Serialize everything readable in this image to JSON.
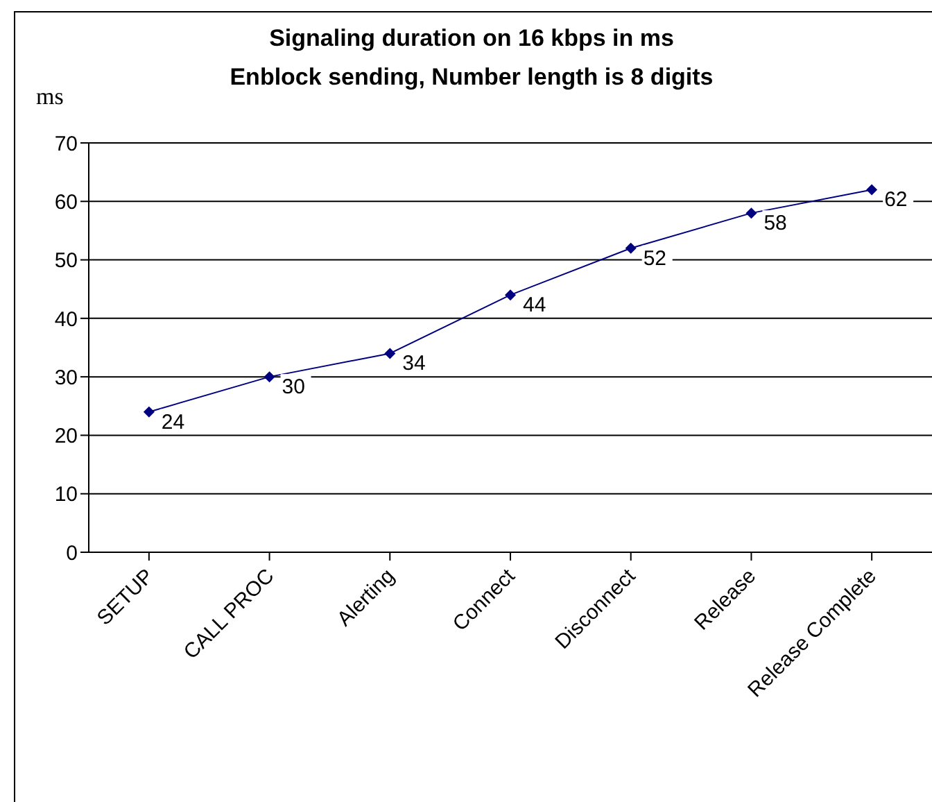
{
  "chart_data": {
    "type": "line",
    "title": "Signaling duration on 16 kbps in ms",
    "subtitle": "Enblock sending, Number length is 8 digits",
    "ylabel": "ms",
    "categories": [
      "SETUP",
      "CALL PROC",
      "Alerting",
      "Connect",
      "Disconnect",
      "Release",
      "Release Complete"
    ],
    "series": [
      {
        "color": "#000080",
        "values": [
          24,
          30,
          34,
          44,
          52,
          58,
          62
        ]
      }
    ],
    "ylim": [
      0,
      70
    ],
    "yticks": [
      0,
      10,
      20,
      30,
      40,
      50,
      60,
      70
    ],
    "grid": "y",
    "marker": "diamond",
    "data_labels": true,
    "legend": false
  }
}
